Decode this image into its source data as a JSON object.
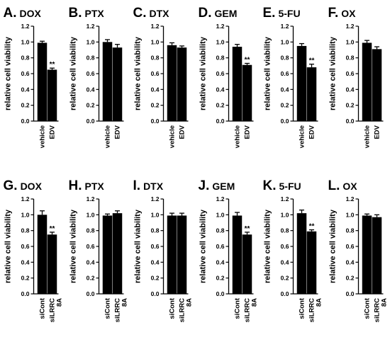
{
  "figure": {
    "ylabel": "relative cell viability",
    "yticks": [
      "0.0",
      "0.2",
      "0.4",
      "0.6",
      "0.8",
      "1.0",
      "1.2"
    ],
    "ylim": [
      0,
      1.2
    ],
    "significance_marker": "**"
  },
  "chart_data": [
    {
      "type": "bar",
      "panel": "A.",
      "drug": "DOX",
      "categories": [
        "vehicle",
        "EDV"
      ],
      "values": [
        0.99,
        0.65
      ],
      "errors": [
        0.02,
        0.02
      ],
      "significant": [
        false,
        true
      ]
    },
    {
      "type": "bar",
      "panel": "B.",
      "drug": "PTX",
      "categories": [
        "vehicle",
        "EDV"
      ],
      "values": [
        1.0,
        0.93
      ],
      "errors": [
        0.03,
        0.04
      ],
      "significant": [
        false,
        false
      ]
    },
    {
      "type": "bar",
      "panel": "C.",
      "drug": "DTX",
      "categories": [
        "vehicle",
        "EDV"
      ],
      "values": [
        0.96,
        0.93
      ],
      "errors": [
        0.03,
        0.02
      ],
      "significant": [
        false,
        false
      ]
    },
    {
      "type": "bar",
      "panel": "D.",
      "drug": "GEM",
      "categories": [
        "vehicle",
        "EDV"
      ],
      "values": [
        0.94,
        0.71
      ],
      "errors": [
        0.03,
        0.02
      ],
      "significant": [
        false,
        true
      ]
    },
    {
      "type": "bar",
      "panel": "E.",
      "drug": "5-FU",
      "categories": [
        "vehicle",
        "EDV"
      ],
      "values": [
        0.95,
        0.68
      ],
      "errors": [
        0.03,
        0.04
      ],
      "significant": [
        false,
        true
      ]
    },
    {
      "type": "bar",
      "panel": "F.",
      "drug": "OX",
      "categories": [
        "vehicle",
        "EDV"
      ],
      "values": [
        0.99,
        0.91
      ],
      "errors": [
        0.03,
        0.03
      ],
      "significant": [
        false,
        false
      ]
    },
    {
      "type": "bar",
      "panel": "G.",
      "drug": "DOX",
      "categories": [
        "siCont",
        "siLRRC 8A"
      ],
      "values": [
        1.0,
        0.75
      ],
      "errors": [
        0.05,
        0.03
      ],
      "significant": [
        false,
        true
      ]
    },
    {
      "type": "bar",
      "panel": "H.",
      "drug": "PTX",
      "categories": [
        "siCont",
        "siLRRC 8A"
      ],
      "values": [
        0.99,
        1.02
      ],
      "errors": [
        0.02,
        0.03
      ],
      "significant": [
        false,
        false
      ]
    },
    {
      "type": "bar",
      "panel": "I.",
      "drug": "DTX",
      "categories": [
        "siCont",
        "siLRRC 8A"
      ],
      "values": [
        0.99,
        0.99
      ],
      "errors": [
        0.03,
        0.03
      ],
      "significant": [
        false,
        false
      ]
    },
    {
      "type": "bar",
      "panel": "J.",
      "drug": "GEM",
      "categories": [
        "siCont",
        "siLRRC 8A"
      ],
      "values": [
        0.99,
        0.75
      ],
      "errors": [
        0.04,
        0.03
      ],
      "significant": [
        false,
        true
      ]
    },
    {
      "type": "bar",
      "panel": "K.",
      "drug": "5-FU",
      "categories": [
        "siCont",
        "siLRRC 8A"
      ],
      "values": [
        1.02,
        0.79
      ],
      "errors": [
        0.04,
        0.02
      ],
      "significant": [
        false,
        true
      ]
    },
    {
      "type": "bar",
      "panel": "L.",
      "drug": "OX",
      "categories": [
        "siCont",
        "siLRRC 8A"
      ],
      "values": [
        0.99,
        0.97
      ],
      "errors": [
        0.02,
        0.03
      ],
      "significant": [
        false,
        false
      ]
    }
  ]
}
